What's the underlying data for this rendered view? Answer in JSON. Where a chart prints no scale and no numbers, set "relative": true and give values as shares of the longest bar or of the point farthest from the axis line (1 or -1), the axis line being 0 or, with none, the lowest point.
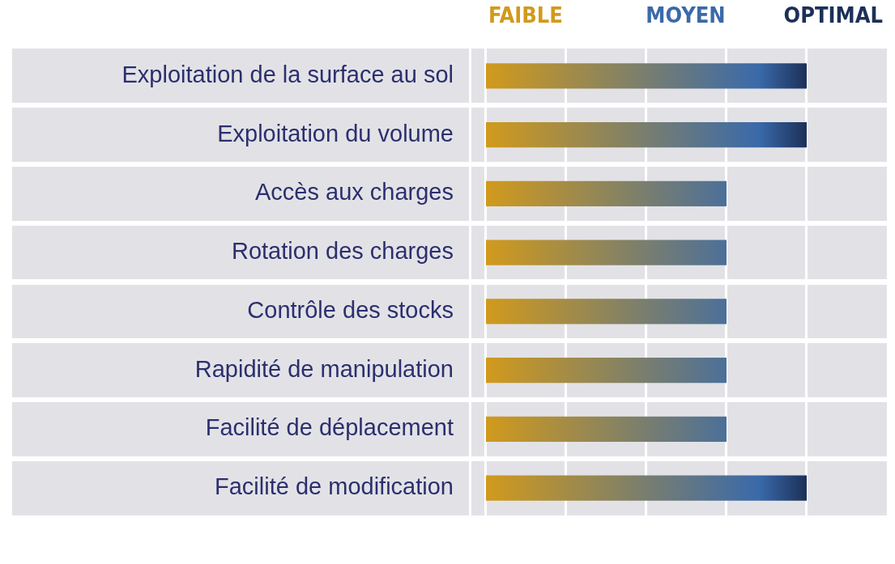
{
  "chart_data": {
    "type": "bar",
    "orientation": "horizontal",
    "relative": true,
    "categories": [
      "Exploitation de la surface au sol",
      "Exploitation du volume",
      "Accès aux charges",
      "Rotation des charges",
      "Contrôle des stocks",
      "Rapidité de manipulation",
      "Facilité de déplacement",
      "Facilité de modification"
    ],
    "values": [
      1,
      1,
      0.75,
      0.75,
      0.75,
      0.75,
      0.75,
      1
    ],
    "color": "#3a6aaa",
    "annotations": [
      "FAIBLE",
      "MOYEN",
      "OPTIMAL"
    ]
  }
}
